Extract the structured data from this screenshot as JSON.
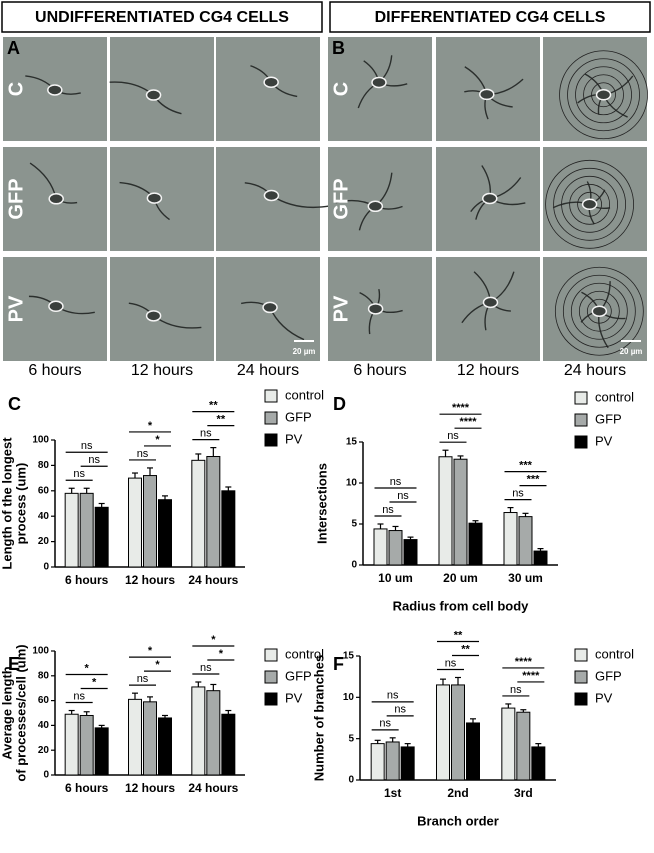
{
  "figure": {
    "headers": [
      "UNDIFFERENTIATED CG4 CELLS",
      "DIFFERENTIATED CG4 CELLS"
    ],
    "panels": [
      "A",
      "B"
    ],
    "rows": [
      "C",
      "GFP",
      "PV"
    ],
    "columns": [
      "6 hours",
      "12 hours",
      "24 hours"
    ],
    "scale_bar": "20 µm"
  },
  "chart_data": [
    {
      "type": "bar",
      "panel": "C",
      "ylabel": [
        "Length of the longest",
        "process (um)"
      ],
      "categories": [
        "6 hours",
        "12 hours",
        "24 hours"
      ],
      "ylim": [
        0,
        100
      ],
      "yticks": [
        0,
        20,
        40,
        60,
        80,
        100
      ],
      "legend": "right",
      "series": [
        {
          "name": "control",
          "color": "#e8ebe8",
          "values": [
            58,
            70,
            84
          ],
          "errors": [
            4,
            4,
            5
          ]
        },
        {
          "name": "GFP",
          "color": "#a6aaa9",
          "values": [
            58,
            72,
            87
          ],
          "errors": [
            4,
            6,
            7
          ]
        },
        {
          "name": "PV",
          "color": "#000000",
          "values": [
            47,
            53,
            60
          ],
          "errors": [
            3,
            3,
            3
          ]
        }
      ],
      "significance": [
        [
          "ns",
          "ns",
          "ns"
        ],
        [
          "*",
          "*",
          "ns"
        ],
        [
          "**",
          "**",
          "ns"
        ]
      ]
    },
    {
      "type": "bar",
      "panel": "D",
      "ylabel": [
        "Intersections"
      ],
      "xlabel": "Radius from cell body",
      "categories": [
        "10 um",
        "20 um",
        "30 um"
      ],
      "ylim": [
        0,
        15
      ],
      "yticks": [
        0,
        5,
        10,
        15
      ],
      "legend": "right",
      "series": [
        {
          "name": "control",
          "color": "#e8ebe8",
          "values": [
            4.4,
            13.2,
            6.4
          ],
          "errors": [
            0.6,
            0.8,
            0.6
          ]
        },
        {
          "name": "GFP",
          "color": "#a6aaa9",
          "values": [
            4.2,
            12.9,
            5.9
          ],
          "errors": [
            0.5,
            0.4,
            0.4
          ]
        },
        {
          "name": "PV",
          "color": "#000000",
          "values": [
            3.1,
            5.1,
            1.7
          ],
          "errors": [
            0.3,
            0.3,
            0.3
          ]
        }
      ],
      "significance": [
        [
          "ns",
          "ns",
          "ns"
        ],
        [
          "****",
          "****",
          "ns"
        ],
        [
          "***",
          "***",
          "ns"
        ]
      ]
    },
    {
      "type": "bar",
      "panel": "E",
      "ylabel": [
        "Average length",
        "of processes/cell (um)"
      ],
      "categories": [
        "6 hours",
        "12 hours",
        "24 hours"
      ],
      "ylim": [
        0,
        100
      ],
      "yticks": [
        0,
        20,
        40,
        60,
        80,
        100
      ],
      "legend": "right",
      "series": [
        {
          "name": "control",
          "color": "#e8ebe8",
          "values": [
            49,
            61,
            71
          ],
          "errors": [
            3,
            5,
            4
          ]
        },
        {
          "name": "GFP",
          "color": "#a6aaa9",
          "values": [
            48,
            59,
            68
          ],
          "errors": [
            3,
            4,
            5
          ]
        },
        {
          "name": "PV",
          "color": "#000000",
          "values": [
            38,
            46,
            49
          ],
          "errors": [
            2,
            2,
            3
          ]
        }
      ],
      "significance": [
        [
          "*",
          "*",
          "ns"
        ],
        [
          "*",
          "*",
          "ns"
        ],
        [
          "*",
          "*",
          "ns"
        ]
      ]
    },
    {
      "type": "bar",
      "panel": "F",
      "ylabel": [
        "Number of branches"
      ],
      "xlabel": "Branch order",
      "categories": [
        "1st",
        "2nd",
        "3rd"
      ],
      "ylim": [
        0,
        15
      ],
      "yticks": [
        0,
        5,
        10,
        15
      ],
      "legend": "right",
      "series": [
        {
          "name": "control",
          "color": "#e8ebe8",
          "values": [
            4.4,
            11.5,
            8.7
          ],
          "errors": [
            0.4,
            0.7,
            0.5
          ]
        },
        {
          "name": "GFP",
          "color": "#a6aaa9",
          "values": [
            4.6,
            11.5,
            8.2
          ],
          "errors": [
            0.5,
            0.9,
            0.3
          ]
        },
        {
          "name": "PV",
          "color": "#000000",
          "values": [
            4.0,
            6.9,
            4.0
          ],
          "errors": [
            0.4,
            0.5,
            0.4
          ]
        }
      ],
      "significance": [
        [
          "ns",
          "ns",
          "ns"
        ],
        [
          "**",
          "**",
          "ns"
        ],
        [
          "****",
          "****",
          "ns"
        ]
      ]
    }
  ]
}
